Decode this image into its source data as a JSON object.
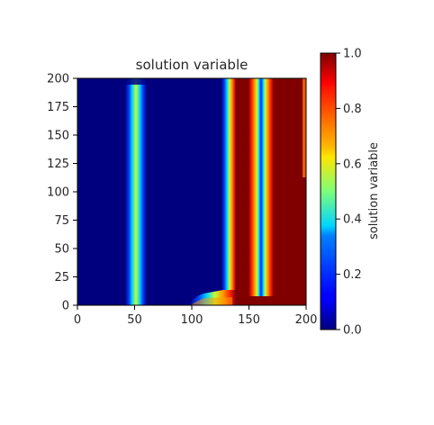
{
  "chart_data": {
    "type": "heatmap",
    "title": "solution variable",
    "xlabel": "",
    "ylabel": "",
    "xlim": [
      0,
      200
    ],
    "ylim": [
      0,
      200
    ],
    "x_ticks": [
      "0",
      "50",
      "100",
      "150",
      "200"
    ],
    "y_ticks": [
      "0",
      "25",
      "50",
      "75",
      "100",
      "125",
      "150",
      "175",
      "200"
    ],
    "colormap": "jet",
    "colorbar": {
      "label": "solution variable",
      "range": [
        0.0,
        1.0
      ],
      "ticks": [
        "0.0",
        "0.2",
        "0.4",
        "0.6",
        "0.8",
        "1.0"
      ]
    },
    "features": [
      {
        "kind": "vertical_band",
        "x_center": 51,
        "half_width": 10,
        "y_from": 0,
        "y_to": 195,
        "peak_value": 0.75
      },
      {
        "kind": "transition_front",
        "x_from": 98,
        "x_to": 136,
        "y_from": 0,
        "y_to": 14,
        "value": "0 to 1"
      },
      {
        "kind": "high_region",
        "x_from": 136,
        "x_to": 153,
        "y_from": 0,
        "y_to": 200,
        "value": 1.0
      },
      {
        "kind": "low_gap",
        "x_from": 159,
        "x_to": 165,
        "y_from": 8,
        "y_to": 200,
        "value": 0.0
      },
      {
        "kind": "high_region",
        "x_from": 171,
        "x_to": 200,
        "y_from": 0,
        "y_to": 200,
        "value": 1.0
      }
    ]
  }
}
